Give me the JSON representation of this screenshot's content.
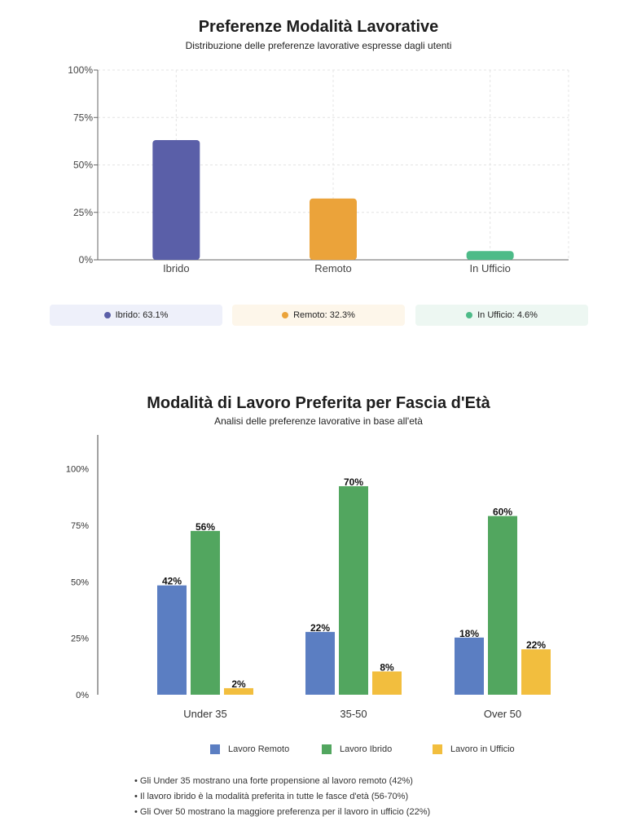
{
  "chart_data": [
    {
      "type": "bar",
      "title": "Preferenze Modalità Lavorative",
      "subtitle": "Distribuzione delle preferenze lavorative espresse dagli utenti",
      "categories": [
        "Ibrido",
        "Remoto",
        "In Ufficio"
      ],
      "values": [
        63.1,
        32.3,
        4.6
      ],
      "colors": [
        "#5a5fa8",
        "#eba33a",
        "#4dbb88"
      ],
      "y_ticks": [
        "0%",
        "25%",
        "50%",
        "75%",
        "100%"
      ],
      "ylim": [
        0,
        100
      ],
      "grid": true,
      "summary_chips": [
        {
          "label": "Ibrido: 63.1%",
          "color": "#5a5fa8",
          "bg": "#eef0fa"
        },
        {
          "label": "Remoto: 32.3%",
          "color": "#eba33a",
          "bg": "#fdf6ea"
        },
        {
          "label": "In Ufficio: 4.6%",
          "color": "#4dbb88",
          "bg": "#edf7f2"
        }
      ]
    },
    {
      "type": "bar",
      "title": "Modalità di Lavoro Preferita per Fascia d'Età",
      "subtitle": "Analisi delle preferenze lavorative in base all'età",
      "categories": [
        "Under 35",
        "35-50",
        "Over 50"
      ],
      "series": [
        {
          "name": "Lavoro Remoto",
          "color": "#5b7ec2",
          "values": [
            42,
            22,
            18
          ],
          "bar_values": [
            48.4,
            27.8,
            25.3
          ]
        },
        {
          "name": "Lavoro Ibrido",
          "color": "#52a65f",
          "values": [
            56,
            70,
            60
          ],
          "bar_values": [
            72.5,
            92.3,
            79.1
          ]
        },
        {
          "name": "Lavoro in Ufficio",
          "color": "#f2be3e",
          "values": [
            2,
            8,
            22
          ],
          "bar_values": [
            2.9,
            10.3,
            20.1
          ]
        }
      ],
      "y_ticks": [
        "0%",
        "25%",
        "50%",
        "75%",
        "100%"
      ],
      "ylim": [
        0,
        115
      ],
      "legend": "bottom",
      "notes": [
        "• Gli Under 35 mostrano una forte propensione al lavoro remoto (42%)",
        "• Il lavoro ibrido è la modalità preferita in tutte le fasce d'età (56-70%)",
        "• Gli Over 50 mostrano la maggiore preferenza per il lavoro in ufficio (22%)"
      ]
    }
  ]
}
